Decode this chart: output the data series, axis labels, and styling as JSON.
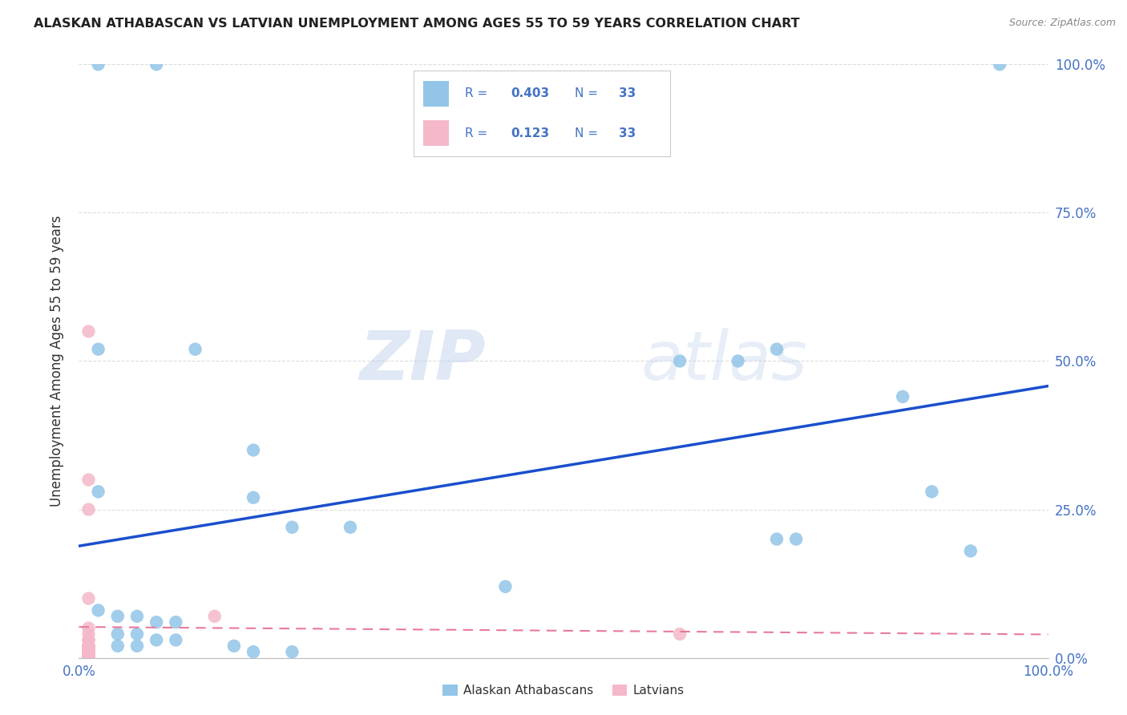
{
  "title": "ALASKAN ATHABASCAN VS LATVIAN UNEMPLOYMENT AMONG AGES 55 TO 59 YEARS CORRELATION CHART",
  "source": "Source: ZipAtlas.com",
  "ylabel": "Unemployment Among Ages 55 to 59 years",
  "blue_color": "#92C5E8",
  "pink_color": "#F4B8C8",
  "trend_blue": "#1A4FCC",
  "trend_pink": "#E87A9A",
  "legend_blue_R": "0.403",
  "legend_blue_N": "33",
  "legend_pink_R": "0.123",
  "legend_pink_N": "33",
  "label_blue": "Alaskan Athabascans",
  "label_pink": "Latvians",
  "watermark_zip": "ZIP",
  "watermark_atlas": "atlas",
  "text_color": "#4472C4",
  "blue_points": [
    [
      0.02,
      1.0
    ],
    [
      0.08,
      1.0
    ],
    [
      0.95,
      1.0
    ],
    [
      0.02,
      0.52
    ],
    [
      0.12,
      0.52
    ],
    [
      0.62,
      0.5
    ],
    [
      0.68,
      0.5
    ],
    [
      0.72,
      0.52
    ],
    [
      0.85,
      0.44
    ],
    [
      0.02,
      0.28
    ],
    [
      0.18,
      0.27
    ],
    [
      0.22,
      0.22
    ],
    [
      0.28,
      0.22
    ],
    [
      0.72,
      0.2
    ],
    [
      0.74,
      0.2
    ],
    [
      0.88,
      0.28
    ],
    [
      0.92,
      0.18
    ],
    [
      0.18,
      0.35
    ],
    [
      0.44,
      0.12
    ],
    [
      0.02,
      0.08
    ],
    [
      0.04,
      0.07
    ],
    [
      0.06,
      0.07
    ],
    [
      0.08,
      0.06
    ],
    [
      0.1,
      0.06
    ],
    [
      0.04,
      0.04
    ],
    [
      0.06,
      0.04
    ],
    [
      0.08,
      0.03
    ],
    [
      0.1,
      0.03
    ],
    [
      0.04,
      0.02
    ],
    [
      0.06,
      0.02
    ],
    [
      0.16,
      0.02
    ],
    [
      0.18,
      0.01
    ],
    [
      0.22,
      0.01
    ]
  ],
  "pink_points": [
    [
      0.01,
      0.55
    ],
    [
      0.01,
      0.3
    ],
    [
      0.01,
      0.25
    ],
    [
      0.01,
      0.1
    ],
    [
      0.14,
      0.07
    ],
    [
      0.01,
      0.05
    ],
    [
      0.01,
      0.04
    ],
    [
      0.01,
      0.03
    ],
    [
      0.01,
      0.03
    ],
    [
      0.01,
      0.02
    ],
    [
      0.01,
      0.02
    ],
    [
      0.01,
      0.02
    ],
    [
      0.01,
      0.02
    ],
    [
      0.01,
      0.02
    ],
    [
      0.01,
      0.015
    ],
    [
      0.01,
      0.015
    ],
    [
      0.01,
      0.015
    ],
    [
      0.01,
      0.01
    ],
    [
      0.01,
      0.01
    ],
    [
      0.01,
      0.01
    ],
    [
      0.01,
      0.01
    ],
    [
      0.01,
      0.01
    ],
    [
      0.01,
      0.008
    ],
    [
      0.01,
      0.008
    ],
    [
      0.01,
      0.008
    ],
    [
      0.01,
      0.006
    ],
    [
      0.01,
      0.006
    ],
    [
      0.01,
      0.004
    ],
    [
      0.01,
      0.004
    ],
    [
      0.01,
      0.002
    ],
    [
      0.01,
      0.002
    ],
    [
      0.01,
      0.002
    ],
    [
      0.62,
      0.04
    ]
  ],
  "xlim": [
    0.0,
    1.0
  ],
  "ylim": [
    0.0,
    1.0
  ],
  "grid_color": "#DDDDDD",
  "grid_yticks": [
    0.0,
    0.25,
    0.5,
    0.75,
    1.0
  ],
  "xtick_positions": [
    0.0,
    1.0
  ],
  "xtick_labels": [
    "0.0%",
    "100.0%"
  ],
  "ytick_labels": [
    "0.0%",
    "25.0%",
    "50.0%",
    "75.0%",
    "100.0%"
  ]
}
